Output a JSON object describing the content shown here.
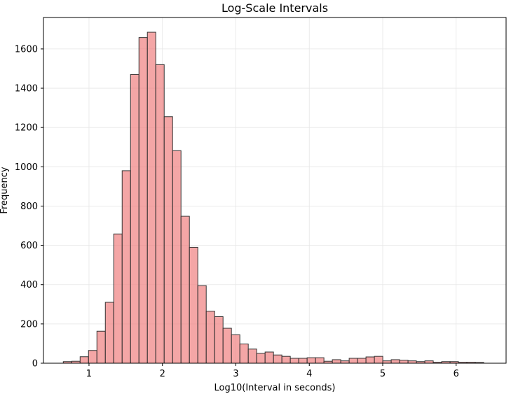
{
  "chart_data": {
    "type": "bar",
    "title": "Log-Scale Intervals",
    "xlabel": "Log10(Interval in seconds)",
    "ylabel": "Frequency",
    "xlim": [
      0.38,
      6.68
    ],
    "ylim": [
      0,
      1760
    ],
    "x_ticks": [
      1,
      2,
      3,
      4,
      5,
      6
    ],
    "y_ticks": [
      0,
      200,
      400,
      600,
      800,
      1000,
      1200,
      1400,
      1600
    ],
    "grid": true,
    "bar_color": "#f08080",
    "edge_color": "#333333",
    "bin_start": 0.65,
    "bin_width": 0.1145,
    "values": [
      8,
      10,
      33,
      65,
      163,
      310,
      658,
      980,
      1470,
      1658,
      1685,
      1520,
      1255,
      1082,
      748,
      590,
      395,
      265,
      237,
      178,
      145,
      98,
      72,
      50,
      57,
      42,
      35,
      25,
      25,
      28,
      28,
      10,
      18,
      12,
      25,
      25,
      32,
      35,
      12,
      18,
      15,
      12,
      8,
      12,
      5,
      8,
      8,
      5,
      5,
      4
    ]
  }
}
